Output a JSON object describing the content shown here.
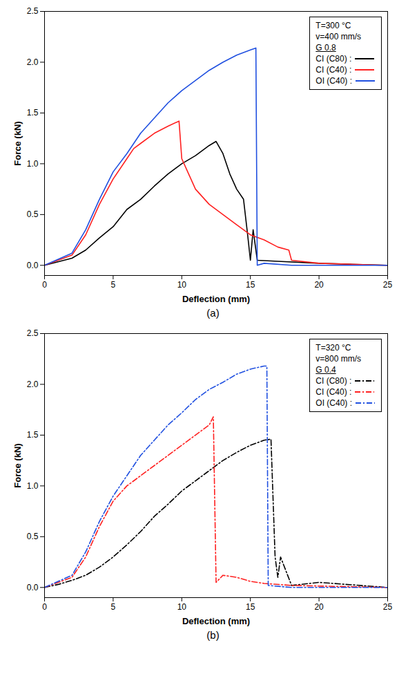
{
  "chart_data": [
    {
      "type": "line",
      "caption": "(a)",
      "x_label": "Deflection (mm)",
      "y_label": "Force (kN)",
      "annotations": [
        "T=300 °C",
        "v=400 mm/s",
        "G 0.8"
      ],
      "xlim": [
        0,
        25
      ],
      "xticks": [
        0,
        5,
        10,
        15,
        20,
        25
      ],
      "ylim": [
        -0.1,
        2.5
      ],
      "yticks": [
        {
          "value": 0,
          "label": "0.0"
        },
        0.5,
        {
          "value": 1,
          "label": "1.0"
        },
        1.5,
        {
          "value": 2,
          "label": "2.0"
        },
        2.5
      ],
      "legend": "top-right",
      "line_style": "solid",
      "series": [
        {
          "name": "CI (C80) :",
          "color": "#000000",
          "x": [
            0,
            2,
            3,
            4,
            5,
            6,
            7,
            8,
            9,
            10,
            11,
            12,
            12.5,
            13,
            13.5,
            14,
            14.5,
            14.8,
            15,
            15.2,
            15.5,
            17,
            20,
            25
          ],
          "values": [
            0,
            0.07,
            0.15,
            0.27,
            0.38,
            0.55,
            0.65,
            0.78,
            0.9,
            1.0,
            1.08,
            1.18,
            1.22,
            1.1,
            0.9,
            0.75,
            0.65,
            0.3,
            0.05,
            0.35,
            0.05,
            0.04,
            0.02,
            0
          ]
        },
        {
          "name": "CI (C40) :",
          "color": "#ff2020",
          "x": [
            0,
            2,
            3,
            4,
            5,
            6,
            6.5,
            7,
            8,
            9,
            9.8,
            10,
            10.5,
            11,
            12,
            13,
            14,
            15,
            16,
            17,
            17.8,
            18,
            20,
            25
          ],
          "values": [
            0,
            0.1,
            0.3,
            0.6,
            0.85,
            1.05,
            1.15,
            1.2,
            1.3,
            1.37,
            1.42,
            1.05,
            0.9,
            0.75,
            0.6,
            0.5,
            0.4,
            0.3,
            0.25,
            0.18,
            0.15,
            0.05,
            0.02,
            0
          ]
        },
        {
          "name": "OI (C40) :",
          "color": "#2050e0",
          "x": [
            0,
            2,
            3,
            4,
            5,
            6,
            7,
            8,
            9,
            10,
            11,
            12,
            13,
            14,
            15,
            15.4,
            15.5,
            16,
            18,
            25
          ],
          "values": [
            0,
            0.12,
            0.35,
            0.65,
            0.92,
            1.1,
            1.3,
            1.45,
            1.6,
            1.72,
            1.82,
            1.92,
            2.0,
            2.07,
            2.12,
            2.14,
            0,
            0.02,
            0,
            0
          ]
        }
      ]
    },
    {
      "type": "line",
      "caption": "(b)",
      "x_label": "Deflection (mm)",
      "y_label": "Force (kN)",
      "annotations": [
        "T=320 °C",
        "v=800 mm/s",
        "G 0.4"
      ],
      "xlim": [
        0,
        25
      ],
      "xticks": [
        0,
        5,
        10,
        15,
        20,
        25
      ],
      "ylim": [
        -0.1,
        2.5
      ],
      "yticks": [
        {
          "value": 0,
          "label": "0.0"
        },
        0.5,
        {
          "value": 1,
          "label": "1.0"
        },
        1.5,
        {
          "value": 2,
          "label": "2.0"
        },
        2.5
      ],
      "legend": "top-right",
      "line_style": "dashdot",
      "series": [
        {
          "name": "CI (C80) :",
          "color": "#000000",
          "x": [
            0,
            1,
            2,
            3,
            4,
            5,
            6,
            7,
            8,
            9,
            10,
            11,
            12,
            13,
            14,
            15,
            16,
            16.5,
            16.8,
            17,
            17.2,
            18,
            20,
            25
          ],
          "values": [
            0,
            0.03,
            0.07,
            0.12,
            0.2,
            0.3,
            0.42,
            0.55,
            0.7,
            0.82,
            0.95,
            1.05,
            1.15,
            1.25,
            1.33,
            1.4,
            1.45,
            1.46,
            0.3,
            0.1,
            0.3,
            0.02,
            0.05,
            0
          ]
        },
        {
          "name": "CI (C40) :",
          "color": "#ff2020",
          "x": [
            0,
            2,
            3,
            4,
            5,
            6,
            7,
            8,
            9,
            10,
            11,
            12,
            12.3,
            12.5,
            13,
            14,
            15,
            16,
            18,
            25
          ],
          "values": [
            0,
            0.1,
            0.3,
            0.6,
            0.85,
            1.0,
            1.1,
            1.2,
            1.3,
            1.4,
            1.5,
            1.6,
            1.68,
            0.05,
            0.12,
            0.1,
            0.06,
            0.04,
            0.02,
            0
          ]
        },
        {
          "name": "OI (C40) :",
          "color": "#2050e0",
          "x": [
            0,
            2,
            3,
            4,
            5,
            6,
            7,
            8,
            9,
            10,
            11,
            12,
            13,
            14,
            15,
            16,
            16.2,
            16.3,
            18,
            25
          ],
          "values": [
            0,
            0.12,
            0.35,
            0.65,
            0.9,
            1.1,
            1.3,
            1.45,
            1.6,
            1.72,
            1.85,
            1.95,
            2.02,
            2.1,
            2.15,
            2.18,
            2.18,
            0.02,
            0,
            0
          ]
        }
      ]
    }
  ]
}
